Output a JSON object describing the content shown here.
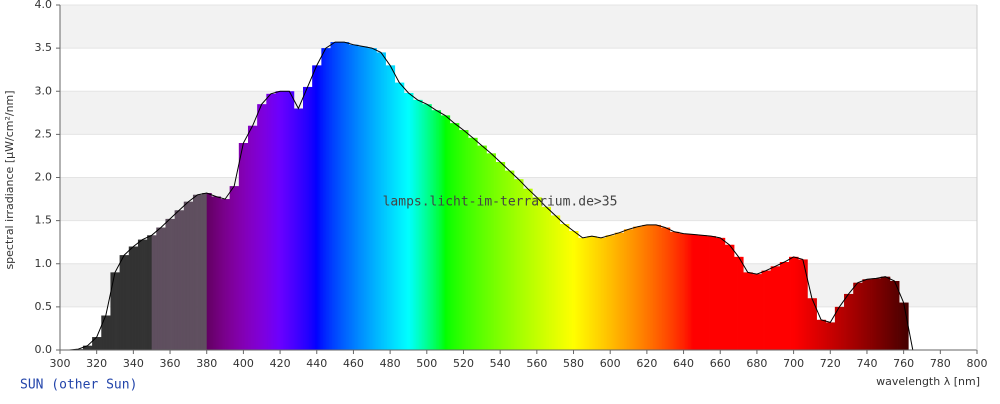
{
  "chart_data": {
    "type": "spectrum",
    "watermark": "lamps.licht-im-terrarium.de>35",
    "caption": "SUN (other Sun)",
    "x_label": "wavelength λ [nm]",
    "y_label": "spectral irradiance [µW/cm²/nm]",
    "xlim": [
      300,
      800
    ],
    "ylim": [
      0,
      4
    ],
    "xticks": [
      300,
      320,
      340,
      360,
      380,
      400,
      420,
      440,
      460,
      480,
      500,
      520,
      540,
      560,
      580,
      600,
      620,
      640,
      660,
      680,
      700,
      720,
      740,
      760,
      780,
      800
    ],
    "yticks": [
      {
        "value": 0,
        "label": "0.0"
      },
      0.5,
      {
        "value": 1,
        "label": "1.0"
      },
      1.5,
      {
        "value": 2,
        "label": "2.0"
      },
      2.5,
      {
        "value": 3,
        "label": "3.0"
      },
      3.5,
      {
        "value": 4,
        "label": "4.0"
      }
    ],
    "grid": true,
    "x": [
      300,
      305,
      310,
      315,
      320,
      325,
      330,
      335,
      340,
      345,
      350,
      355,
      360,
      365,
      370,
      375,
      380,
      385,
      390,
      395,
      400,
      405,
      410,
      415,
      420,
      425,
      430,
      435,
      440,
      445,
      450,
      455,
      460,
      465,
      470,
      475,
      480,
      485,
      490,
      495,
      500,
      505,
      510,
      515,
      520,
      525,
      530,
      535,
      540,
      545,
      550,
      555,
      560,
      565,
      570,
      575,
      580,
      585,
      590,
      595,
      600,
      605,
      610,
      615,
      620,
      625,
      630,
      635,
      640,
      645,
      650,
      655,
      660,
      665,
      670,
      675,
      680,
      685,
      690,
      695,
      700,
      705,
      710,
      715,
      720,
      725,
      730,
      735,
      740,
      745,
      750,
      755,
      760,
      765
    ],
    "values": [
      0,
      0,
      0.01,
      0.05,
      0.15,
      0.4,
      0.9,
      1.1,
      1.2,
      1.28,
      1.33,
      1.42,
      1.52,
      1.62,
      1.72,
      1.8,
      1.82,
      1.78,
      1.75,
      1.9,
      2.4,
      2.6,
      2.85,
      2.97,
      3.0,
      3.0,
      2.8,
      3.05,
      3.3,
      3.5,
      3.57,
      3.57,
      3.54,
      3.52,
      3.5,
      3.45,
      3.3,
      3.1,
      2.98,
      2.9,
      2.85,
      2.78,
      2.72,
      2.63,
      2.55,
      2.46,
      2.37,
      2.28,
      2.18,
      2.08,
      1.98,
      1.87,
      1.77,
      1.66,
      1.56,
      1.46,
      1.38,
      1.3,
      1.32,
      1.3,
      1.33,
      1.36,
      1.4,
      1.43,
      1.45,
      1.45,
      1.42,
      1.37,
      1.35,
      1.34,
      1.33,
      1.32,
      1.3,
      1.22,
      1.08,
      0.9,
      0.88,
      0.92,
      0.97,
      1.02,
      1.08,
      1.05,
      0.6,
      0.35,
      0.32,
      0.5,
      0.65,
      0.78,
      0.82,
      0.83,
      0.85,
      0.8,
      0.55,
      0
    ]
  }
}
